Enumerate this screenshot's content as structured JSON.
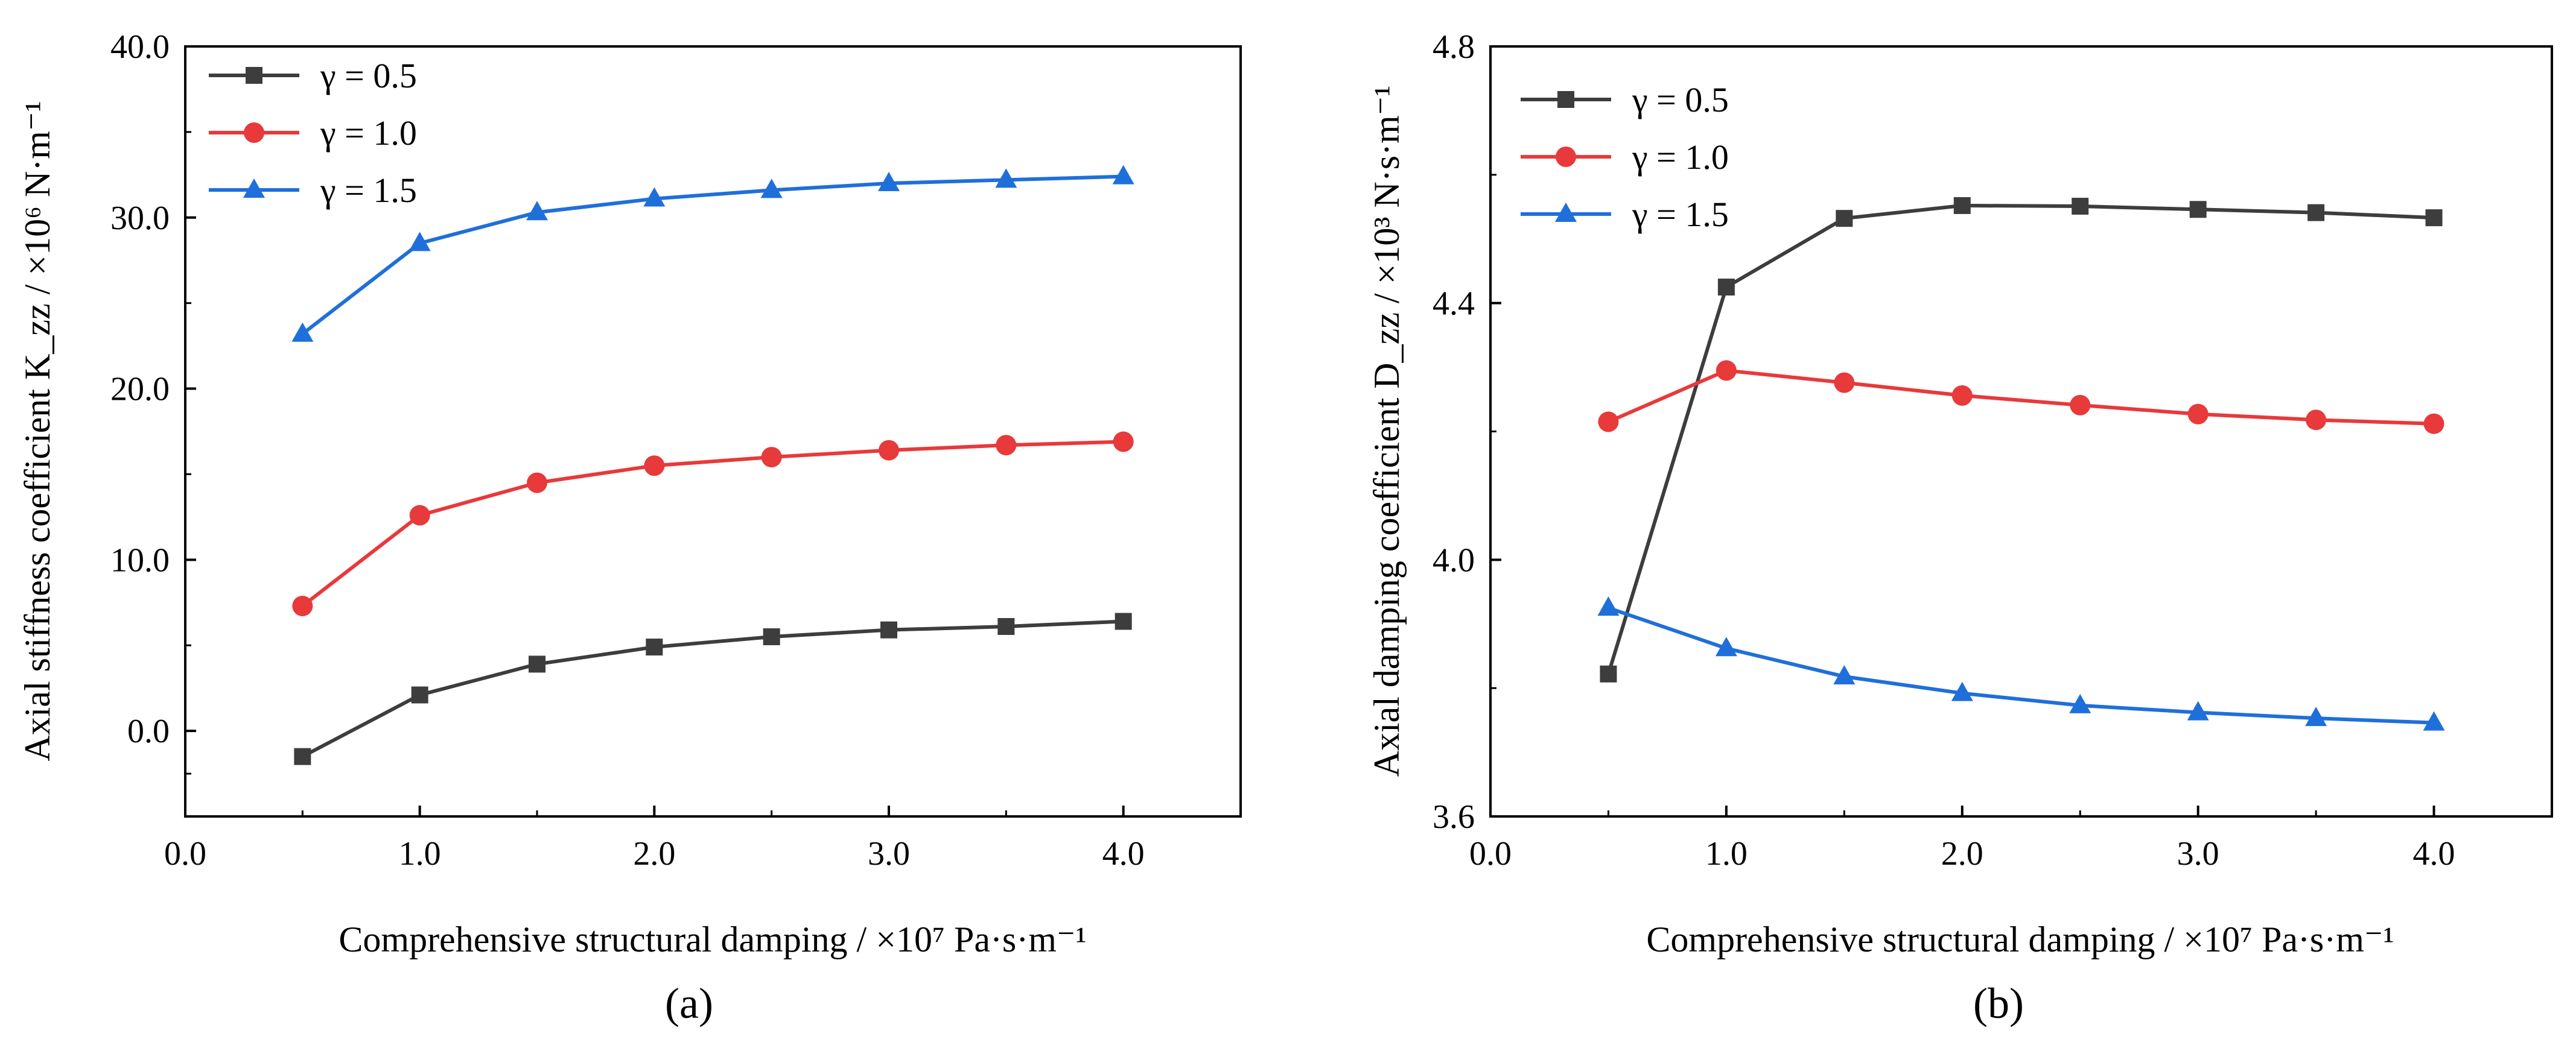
{
  "figure": {
    "captions": [
      "(a)",
      "(b)"
    ]
  },
  "chart_data": [
    {
      "type": "line",
      "panel": "(a)",
      "title": "",
      "xlabel": "Comprehensive structural damping / ×10⁷ Pa·s·m⁻¹",
      "ylabel": "Axial stiffness coefficient K_zz / ×10⁶ N·m⁻¹",
      "xlim": [
        0.0,
        4.5
      ],
      "ylim": [
        -5.0,
        40.0
      ],
      "xticks": [
        0.0,
        1.0,
        2.0,
        3.0,
        4.0
      ],
      "xtick_labels": [
        "0.0",
        "1.0",
        "2.0",
        "3.0",
        "4.0"
      ],
      "yticks": [
        0.0,
        10.0,
        20.0,
        30.0,
        40.0
      ],
      "ytick_labels": [
        "0.0",
        "10.0",
        "20.0",
        "30.0",
        "40.0"
      ],
      "legend_position": "top-left",
      "grid": false,
      "x": [
        0.5,
        1.0,
        1.5,
        2.0,
        2.5,
        3.0,
        3.5,
        4.0
      ],
      "series": [
        {
          "name": "γ = 0.5",
          "marker": "square",
          "color": "#3d3d3d",
          "values": [
            -1.5,
            2.1,
            3.9,
            4.9,
            5.5,
            5.9,
            6.1,
            6.4
          ]
        },
        {
          "name": "γ = 1.0",
          "marker": "circle",
          "color": "#e8393b",
          "values": [
            7.3,
            12.6,
            14.5,
            15.5,
            16.0,
            16.4,
            16.7,
            16.9
          ]
        },
        {
          "name": "γ = 1.5",
          "marker": "triangle",
          "color": "#1f6fdb",
          "values": [
            23.2,
            28.5,
            30.3,
            31.1,
            31.6,
            32.0,
            32.2,
            32.4
          ]
        }
      ]
    },
    {
      "type": "line",
      "panel": "(b)",
      "title": "",
      "xlabel": "Comprehensive structural damping / ×10⁷ Pa·s·m⁻¹",
      "ylabel": "Axial damping coefficient D_zz / ×10³ N·s·m⁻¹",
      "xlim": [
        0.0,
        4.5
      ],
      "ylim": [
        3.6,
        4.8
      ],
      "xticks": [
        0.0,
        1.0,
        2.0,
        3.0,
        4.0
      ],
      "xtick_labels": [
        "0.0",
        "1.0",
        "2.0",
        "3.0",
        "4.0"
      ],
      "yticks": [
        3.6,
        4.0,
        4.4,
        4.8
      ],
      "ytick_labels": [
        "3.6",
        "4.0",
        "4.4",
        "4.8"
      ],
      "legend_position": "top-left",
      "grid": false,
      "x": [
        0.5,
        1.0,
        1.5,
        2.0,
        2.5,
        3.0,
        3.5,
        4.0
      ],
      "series": [
        {
          "name": "γ = 0.5",
          "marker": "square",
          "color": "#3d3d3d",
          "values": [
            3.822,
            4.425,
            4.532,
            4.552,
            4.551,
            4.546,
            4.541,
            4.533
          ]
        },
        {
          "name": "γ = 1.0",
          "marker": "circle",
          "color": "#e8393b",
          "values": [
            4.215,
            4.295,
            4.276,
            4.256,
            4.241,
            4.227,
            4.218,
            4.212
          ]
        },
        {
          "name": "γ = 1.5",
          "marker": "triangle",
          "color": "#1f6fdb",
          "values": [
            3.925,
            3.862,
            3.818,
            3.792,
            3.773,
            3.762,
            3.753,
            3.746
          ]
        }
      ]
    }
  ]
}
